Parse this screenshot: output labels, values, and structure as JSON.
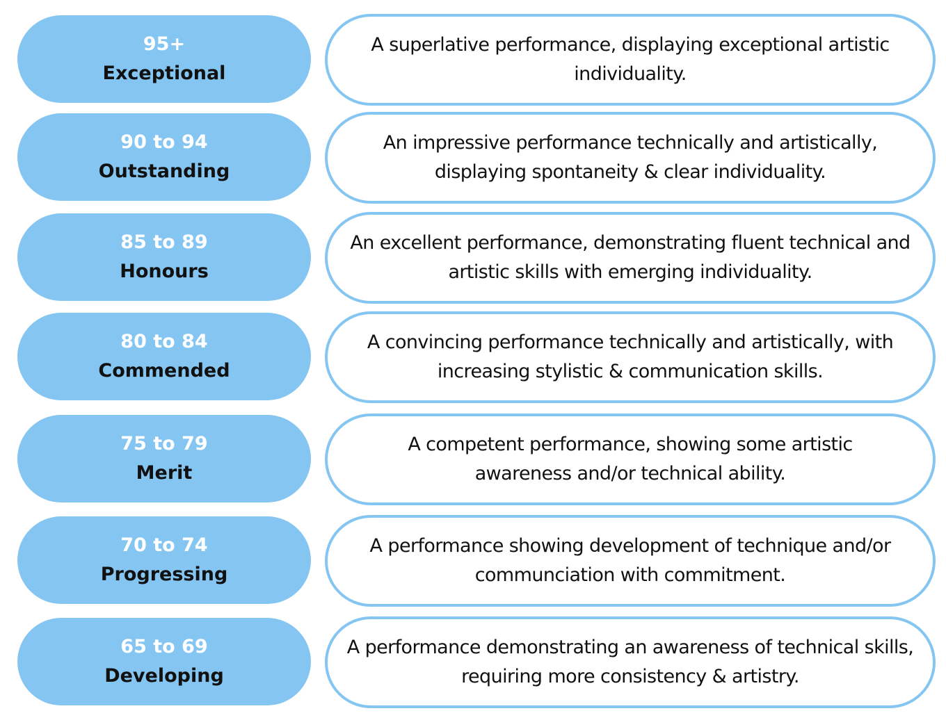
{
  "bands": [
    {
      "range": "95+",
      "label": "Exceptional",
      "description": "A superlative performance, displaying exceptional artistic individuality."
    },
    {
      "range": "90 to 94",
      "label": "Outstanding",
      "description": "An impressive performance technically and artistically, displaying spontaneity & clear individuality."
    },
    {
      "range": "85 to 89",
      "label": "Honours",
      "description": "An excellent performance, demonstrating fluent technical and artistic skills with emerging individuality."
    },
    {
      "range": "80 to 84",
      "label": "Commended",
      "description": "A convincing performance technically and artistically, with increasing stylistic & communication skills."
    },
    {
      "range": "75 to 79",
      "label": "Merit",
      "description": "A competent performance, showing some artistic awareness and/or technical ability."
    },
    {
      "range": "70 to 74",
      "label": "Progressing",
      "description": "A performance showing development of technique and/or communciation with commitment."
    },
    {
      "range": "65 to 69",
      "label": "Developing",
      "description": "A performance demonstrating an awareness of technical skills, requiring more consistency & artistry."
    }
  ],
  "colors": {
    "pill_fill": "#84c5f2",
    "range_text": "#ffffff",
    "label_text": "#111111",
    "description_border": "#84c5f2"
  }
}
